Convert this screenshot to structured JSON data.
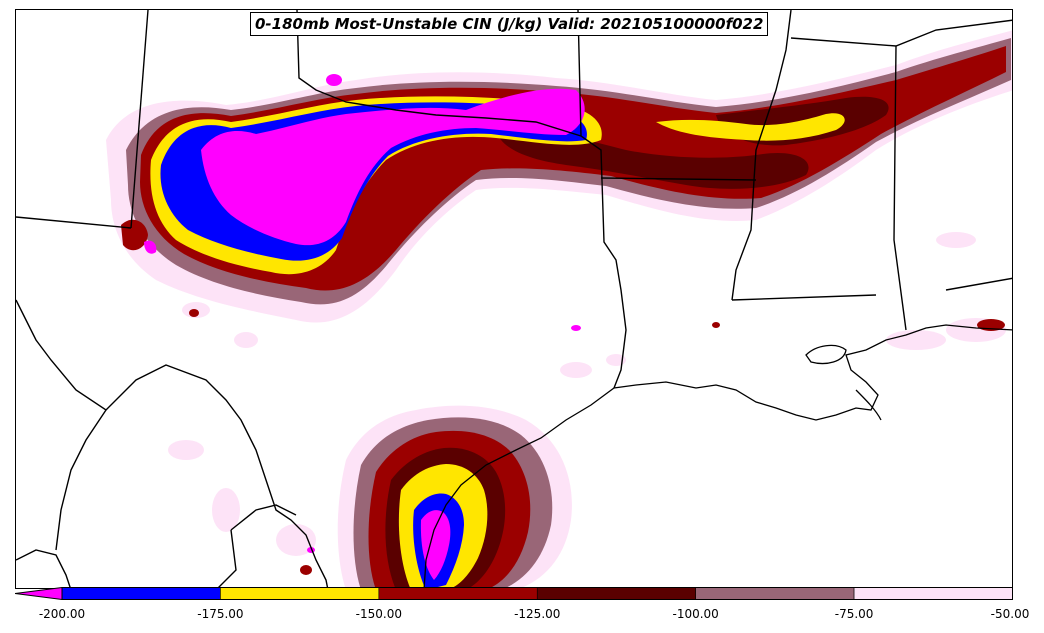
{
  "title": "0-180mb Most-Unstable CIN (J/kg) Valid: 202105100000f022",
  "colors": {
    "below_-200": "#ff00ff",
    "-200_to_-175": "#0000ff",
    "-175_to_-150": "#ffe600",
    "-150_to_-125": "#9b0000",
    "-125_to_-100": "#5a0000",
    "-100_to_-75": "#996677",
    "-75_to_-50": "#fde3f7"
  },
  "colorbar": {
    "ticks": [
      "-200.00",
      "-175.00",
      "-150.00",
      "-125.00",
      "-100.00",
      "-75.00",
      "-50.00"
    ],
    "bins": [
      {
        "from": -200,
        "to": -175,
        "color": "#0000ff"
      },
      {
        "from": -175,
        "to": -150,
        "color": "#ffe600"
      },
      {
        "from": -150,
        "to": -125,
        "color": "#9b0000"
      },
      {
        "from": -125,
        "to": -100,
        "color": "#5a0000"
      },
      {
        "from": -100,
        "to": -75,
        "color": "#996677"
      },
      {
        "from": -75,
        "to": -50,
        "color": "#fde3f7"
      }
    ],
    "extend_low_color": "#ff00ff",
    "min": -200,
    "max": -50
  }
}
